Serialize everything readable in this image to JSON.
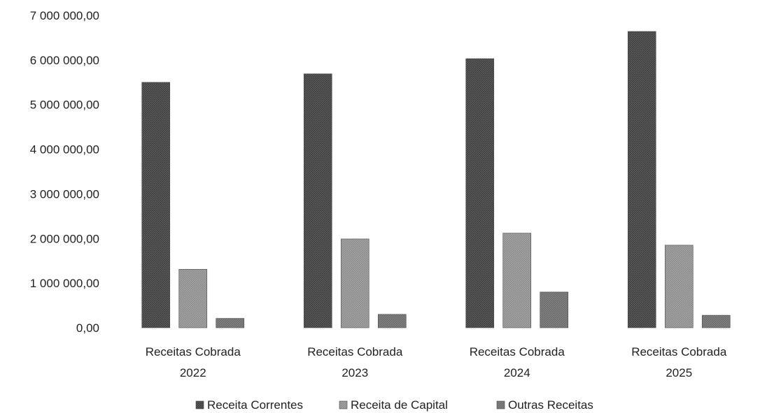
{
  "chart_data": {
    "type": "bar",
    "categories": [
      [
        "Receitas Cobrada",
        "2022"
      ],
      [
        "Receitas Cobrada",
        "2023"
      ],
      [
        "Receitas Cobrada",
        "2024"
      ],
      [
        "Receitas Cobrada",
        "2025"
      ]
    ],
    "series": [
      {
        "name": "Receita Correntes",
        "values": [
          5500000,
          5690000,
          6030000,
          6640000
        ],
        "color": "#555555"
      },
      {
        "name": "Receita de Capital",
        "values": [
          1310000,
          1990000,
          2120000,
          1850000
        ],
        "color": "#9a9a9a"
      },
      {
        "name": "Outras Receitas",
        "values": [
          210000,
          300000,
          800000,
          280000
        ],
        "color": "#7c7c7c"
      }
    ],
    "ylim": [
      0,
      7000000
    ],
    "yticks": [
      "0,00",
      "1 000 000,00",
      "2 000 000,00",
      "3 000 000,00",
      "4 000 000,00",
      "5 000 000,00",
      "6 000 000,00",
      "7 000 000,00"
    ],
    "grid": false,
    "legend_position": "bottom"
  }
}
